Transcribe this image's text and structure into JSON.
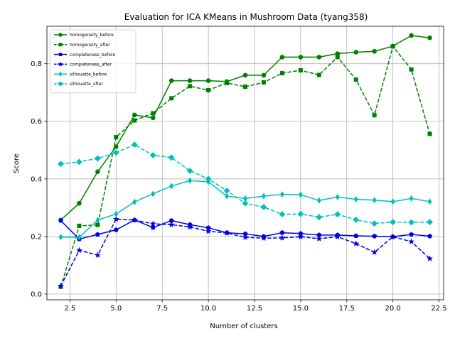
{
  "chart_data": {
    "type": "line",
    "title": "Evaluation for ICA KMeans in Mushroom Data (tyang358)",
    "xlabel": "Number of clusters",
    "ylabel": "Score",
    "xlim": [
      1.25,
      22.75
    ],
    "ylim": [
      -0.02,
      0.93
    ],
    "xticks": [
      2.5,
      5.0,
      7.5,
      10.0,
      12.5,
      15.0,
      17.5,
      20.0,
      22.5
    ],
    "xtick_labels": [
      "2.5",
      "5.0",
      "7.5",
      "10.0",
      "12.5",
      "15.0",
      "17.5",
      "20.0",
      "22.5"
    ],
    "yticks": [
      0.0,
      0.2,
      0.4,
      0.6,
      0.8
    ],
    "ytick_labels": [
      "0.0",
      "0.2",
      "0.4",
      "0.6",
      "0.8"
    ],
    "grid": true,
    "legend_position": "upper-left",
    "x": [
      2,
      3,
      4,
      5,
      6,
      7,
      8,
      9,
      10,
      11,
      12,
      13,
      14,
      15,
      16,
      17,
      18,
      19,
      20,
      21,
      22
    ],
    "series": [
      {
        "name": "homogeneity_before",
        "color": "#008000",
        "linestyle": "solid",
        "marker": "circle",
        "values": [
          0.257,
          0.315,
          0.425,
          0.512,
          0.622,
          0.612,
          0.741,
          0.741,
          0.741,
          0.738,
          0.76,
          0.76,
          0.823,
          0.823,
          0.823,
          0.835,
          0.84,
          0.843,
          0.861,
          0.898,
          0.89
        ]
      },
      {
        "name": "homogeneity_after",
        "color": "#008000",
        "linestyle": "dashed",
        "marker": "square",
        "values": [
          0.025,
          0.237,
          0.24,
          0.545,
          0.603,
          0.628,
          0.68,
          0.722,
          0.708,
          0.733,
          0.72,
          0.735,
          0.767,
          0.777,
          0.761,
          0.823,
          0.745,
          0.621,
          0.86,
          0.78,
          0.556
        ]
      },
      {
        "name": "completeness_before",
        "color": "#0000dd",
        "linestyle": "solid",
        "marker": "pentagon",
        "values": [
          0.255,
          0.191,
          0.207,
          0.223,
          0.257,
          0.231,
          0.255,
          0.241,
          0.23,
          0.213,
          0.209,
          0.2,
          0.213,
          0.21,
          0.205,
          0.205,
          0.202,
          0.201,
          0.199,
          0.207,
          0.201
        ]
      },
      {
        "name": "completeness_after",
        "color": "#0000dd",
        "linestyle": "dashed",
        "marker": "star",
        "values": [
          0.028,
          0.152,
          0.135,
          0.26,
          0.257,
          0.244,
          0.241,
          0.233,
          0.218,
          0.212,
          0.197,
          0.194,
          0.195,
          0.199,
          0.192,
          0.199,
          0.175,
          0.145,
          0.199,
          0.182,
          0.123
        ]
      },
      {
        "name": "silhouette_before",
        "color": "#00bfbf",
        "linestyle": "solid",
        "marker": "thin_diamond",
        "values": [
          0.198,
          0.197,
          0.257,
          0.278,
          0.32,
          0.348,
          0.375,
          0.394,
          0.39,
          0.34,
          0.332,
          0.34,
          0.346,
          0.345,
          0.325,
          0.337,
          0.329,
          0.326,
          0.321,
          0.332,
          0.321
        ]
      },
      {
        "name": "silhouette_after",
        "color": "#00bfbf",
        "linestyle": "dashed",
        "marker": "diamond",
        "values": [
          0.452,
          0.459,
          0.471,
          0.491,
          0.519,
          0.482,
          0.474,
          0.428,
          0.4,
          0.359,
          0.315,
          0.302,
          0.277,
          0.278,
          0.267,
          0.277,
          0.258,
          0.245,
          0.25,
          0.249,
          0.25
        ]
      }
    ]
  }
}
